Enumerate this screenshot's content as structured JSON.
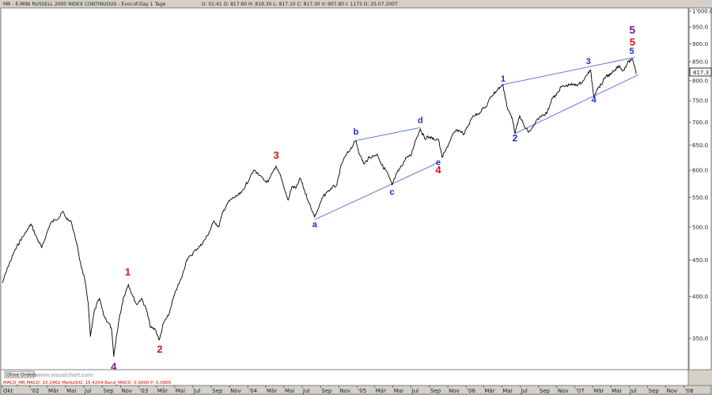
{
  "header": {
    "instrument": "MR - E-MINI RUSSELL 2000 INDEX CONTINUOUS - Evol-of-Day 1 Tage",
    "ohlc": "U: 01:41  O: 817.60  H: 819.30  L: 817.10  C: 817.30  V: 907.80  I: 1175  D: 25.07.2007"
  },
  "indicator_strip": {
    "text": "MACD_MR  MACD: 15.2462  MediaSIG: 15.4254  Band_MACD: 0.0000  P: 5.0905"
  },
  "buttons": {
    "ohne_orders": "Ohne Orders"
  },
  "watermark": "www.visualchart.com",
  "last_price": "817.3",
  "colors": {
    "plot_bg": "#ffffff",
    "frame_bg": "#d4d0c8",
    "price": "#000000",
    "trendline": "#4f6bd6",
    "wave_red": "#dd1111",
    "wave_blue": "#1a2fd0",
    "wave_purple": "#7a1d8a"
  },
  "chart_data": {
    "type": "line",
    "title": "",
    "xlabel": "",
    "ylabel": "",
    "y_scale": "log",
    "ylim": [
      318,
      1005
    ],
    "xlim": [
      "2001-10-01",
      "2008-01-10"
    ],
    "grid": false,
    "y_ticks": [
      {
        "value": 1000,
        "label": "1'000.0"
      },
      {
        "value": 950,
        "label": "950.0"
      },
      {
        "value": 900,
        "label": "900.0"
      },
      {
        "value": 850,
        "label": "850.0"
      },
      {
        "value": 800,
        "label": "800.0"
      },
      {
        "value": 750,
        "label": "750.0"
      },
      {
        "value": 700,
        "label": "700.0"
      },
      {
        "value": 650,
        "label": "650.0"
      },
      {
        "value": 600,
        "label": "600.0"
      },
      {
        "value": 550,
        "label": "550.0"
      },
      {
        "value": 500,
        "label": "500.0"
      },
      {
        "value": 450,
        "label": "450.0"
      },
      {
        "value": 400,
        "label": "400.0"
      },
      {
        "value": 350,
        "label": "350.0"
      }
    ],
    "x_ticks": [
      {
        "date": "2001-10-01",
        "label": "Okt"
      },
      {
        "date": "2002-01-01",
        "label": "'02"
      },
      {
        "date": "2002-03-01",
        "label": "Mär"
      },
      {
        "date": "2002-05-01",
        "label": "Mai"
      },
      {
        "date": "2002-07-01",
        "label": "Jul"
      },
      {
        "date": "2002-09-01",
        "label": "Sep"
      },
      {
        "date": "2002-11-01",
        "label": "Nov"
      },
      {
        "date": "2003-01-01",
        "label": "'03"
      },
      {
        "date": "2003-03-01",
        "label": "Mär"
      },
      {
        "date": "2003-05-01",
        "label": "Mai"
      },
      {
        "date": "2003-07-01",
        "label": "Jul"
      },
      {
        "date": "2003-09-01",
        "label": "Sep"
      },
      {
        "date": "2003-11-01",
        "label": "Nov"
      },
      {
        "date": "2004-01-01",
        "label": "'04"
      },
      {
        "date": "2004-03-01",
        "label": "Mär"
      },
      {
        "date": "2004-05-01",
        "label": "Mai"
      },
      {
        "date": "2004-07-01",
        "label": "Jul"
      },
      {
        "date": "2004-09-01",
        "label": "Sep"
      },
      {
        "date": "2004-11-01",
        "label": "Nov"
      },
      {
        "date": "2005-01-01",
        "label": "'05"
      },
      {
        "date": "2005-03-01",
        "label": "Mär"
      },
      {
        "date": "2005-05-01",
        "label": "Mai"
      },
      {
        "date": "2005-07-01",
        "label": "Jul"
      },
      {
        "date": "2005-09-01",
        "label": "Sep"
      },
      {
        "date": "2005-11-01",
        "label": "Nov"
      },
      {
        "date": "2006-01-01",
        "label": "'06"
      },
      {
        "date": "2006-03-01",
        "label": "Mär"
      },
      {
        "date": "2006-05-01",
        "label": "Mai"
      },
      {
        "date": "2006-07-01",
        "label": "Jul"
      },
      {
        "date": "2006-09-01",
        "label": "Sep"
      },
      {
        "date": "2006-11-01",
        "label": "Nov"
      },
      {
        "date": "2007-01-01",
        "label": "'07"
      },
      {
        "date": "2007-03-01",
        "label": "Mär"
      },
      {
        "date": "2007-05-01",
        "label": "Mai"
      },
      {
        "date": "2007-07-01",
        "label": "Jul"
      },
      {
        "date": "2007-09-01",
        "label": "Sep"
      },
      {
        "date": "2007-11-01",
        "label": "Nov"
      },
      {
        "date": "2008-01-01",
        "label": "'08"
      }
    ],
    "series": [
      {
        "points": [
          [
            "2001-10-01",
            418
          ],
          [
            "2001-10-20",
            440
          ],
          [
            "2001-11-10",
            462
          ],
          [
            "2001-12-01",
            480
          ],
          [
            "2001-12-20",
            492
          ],
          [
            "2002-01-05",
            505
          ],
          [
            "2002-01-25",
            482
          ],
          [
            "2002-02-10",
            468
          ],
          [
            "2002-02-25",
            488
          ],
          [
            "2002-03-10",
            505
          ],
          [
            "2002-03-25",
            512
          ],
          [
            "2002-04-10",
            516
          ],
          [
            "2002-04-22",
            526
          ],
          [
            "2002-05-05",
            512
          ],
          [
            "2002-05-20",
            508
          ],
          [
            "2002-06-05",
            478
          ],
          [
            "2002-06-20",
            445
          ],
          [
            "2002-07-05",
            420
          ],
          [
            "2002-07-15",
            393
          ],
          [
            "2002-07-23",
            352
          ],
          [
            "2002-08-05",
            382
          ],
          [
            "2002-08-22",
            398
          ],
          [
            "2002-09-05",
            377
          ],
          [
            "2002-09-20",
            368
          ],
          [
            "2002-10-01",
            362
          ],
          [
            "2002-10-09",
            330
          ],
          [
            "2002-10-25",
            368
          ],
          [
            "2002-11-10",
            398
          ],
          [
            "2002-11-27",
            416
          ],
          [
            "2002-12-10",
            402
          ],
          [
            "2002-12-25",
            390
          ],
          [
            "2003-01-10",
            398
          ],
          [
            "2003-01-25",
            385
          ],
          [
            "2003-02-10",
            362
          ],
          [
            "2003-02-25",
            360
          ],
          [
            "2003-03-11",
            348
          ],
          [
            "2003-03-25",
            368
          ],
          [
            "2003-04-10",
            376
          ],
          [
            "2003-04-25",
            396
          ],
          [
            "2003-05-10",
            412
          ],
          [
            "2003-05-25",
            425
          ],
          [
            "2003-06-10",
            450
          ],
          [
            "2003-06-25",
            456
          ],
          [
            "2003-07-10",
            465
          ],
          [
            "2003-07-25",
            470
          ],
          [
            "2003-08-10",
            480
          ],
          [
            "2003-08-25",
            492
          ],
          [
            "2003-09-10",
            510
          ],
          [
            "2003-09-25",
            500
          ],
          [
            "2003-10-10",
            525
          ],
          [
            "2003-10-25",
            540
          ],
          [
            "2003-11-10",
            548
          ],
          [
            "2003-11-25",
            552
          ],
          [
            "2003-12-10",
            558
          ],
          [
            "2003-12-25",
            572
          ],
          [
            "2004-01-10",
            588
          ],
          [
            "2004-01-23",
            600
          ],
          [
            "2004-02-10",
            590
          ],
          [
            "2004-02-25",
            580
          ],
          [
            "2004-03-10",
            578
          ],
          [
            "2004-03-25",
            597
          ],
          [
            "2004-04-05",
            608
          ],
          [
            "2004-04-20",
            590
          ],
          [
            "2004-05-05",
            560
          ],
          [
            "2004-05-15",
            545
          ],
          [
            "2004-05-28",
            570
          ],
          [
            "2004-06-10",
            566
          ],
          [
            "2004-06-25",
            585
          ],
          [
            "2004-07-10",
            560
          ],
          [
            "2004-07-25",
            540
          ],
          [
            "2004-08-05",
            525
          ],
          [
            "2004-08-12",
            516
          ],
          [
            "2004-08-25",
            532
          ],
          [
            "2004-09-10",
            552
          ],
          [
            "2004-09-25",
            560
          ],
          [
            "2004-10-10",
            568
          ],
          [
            "2004-10-25",
            572
          ],
          [
            "2004-11-10",
            612
          ],
          [
            "2004-11-25",
            630
          ],
          [
            "2004-12-10",
            642
          ],
          [
            "2004-12-28",
            660
          ],
          [
            "2005-01-10",
            630
          ],
          [
            "2005-01-25",
            612
          ],
          [
            "2005-02-10",
            625
          ],
          [
            "2005-02-25",
            628
          ],
          [
            "2005-03-10",
            632
          ],
          [
            "2005-03-25",
            610
          ],
          [
            "2005-04-10",
            598
          ],
          [
            "2005-04-28",
            572
          ],
          [
            "2005-05-15",
            595
          ],
          [
            "2005-05-30",
            608
          ],
          [
            "2005-06-15",
            625
          ],
          [
            "2005-06-30",
            628
          ],
          [
            "2005-07-15",
            660
          ],
          [
            "2005-08-01",
            685
          ],
          [
            "2005-08-15",
            665
          ],
          [
            "2005-08-30",
            668
          ],
          [
            "2005-09-15",
            663
          ],
          [
            "2005-09-30",
            663
          ],
          [
            "2005-10-13",
            625
          ],
          [
            "2005-10-25",
            640
          ],
          [
            "2005-11-10",
            662
          ],
          [
            "2005-11-25",
            680
          ],
          [
            "2005-12-10",
            682
          ],
          [
            "2005-12-25",
            674
          ],
          [
            "2006-01-10",
            695
          ],
          [
            "2006-01-25",
            715
          ],
          [
            "2006-02-10",
            718
          ],
          [
            "2006-02-25",
            730
          ],
          [
            "2006-03-10",
            735
          ],
          [
            "2006-03-25",
            760
          ],
          [
            "2006-04-10",
            772
          ],
          [
            "2006-04-25",
            784
          ],
          [
            "2006-05-05",
            788
          ],
          [
            "2006-05-20",
            730
          ],
          [
            "2006-06-05",
            710
          ],
          [
            "2006-06-14",
            675
          ],
          [
            "2006-06-30",
            715
          ],
          [
            "2006-07-15",
            690
          ],
          [
            "2006-07-30",
            678
          ],
          [
            "2006-08-15",
            690
          ],
          [
            "2006-08-30",
            708
          ],
          [
            "2006-09-15",
            716
          ],
          [
            "2006-09-30",
            722
          ],
          [
            "2006-10-15",
            755
          ],
          [
            "2006-10-30",
            763
          ],
          [
            "2006-11-15",
            784
          ],
          [
            "2006-11-30",
            786
          ],
          [
            "2006-12-15",
            790
          ],
          [
            "2006-12-30",
            788
          ],
          [
            "2007-01-15",
            792
          ],
          [
            "2007-01-30",
            800
          ],
          [
            "2007-02-10",
            815
          ],
          [
            "2007-02-22",
            828
          ],
          [
            "2007-03-05",
            760
          ],
          [
            "2007-03-15",
            778
          ],
          [
            "2007-03-30",
            790
          ],
          [
            "2007-04-15",
            812
          ],
          [
            "2007-04-30",
            815
          ],
          [
            "2007-05-15",
            828
          ],
          [
            "2007-05-30",
            840
          ],
          [
            "2007-06-10",
            825
          ],
          [
            "2007-06-25",
            845
          ],
          [
            "2007-07-10",
            858
          ],
          [
            "2007-07-20",
            838
          ],
          [
            "2007-07-25",
            817
          ]
        ]
      }
    ],
    "trendlines": [
      {
        "from": [
          "2004-08-12",
          512
        ],
        "to": [
          "2005-09-30",
          615
        ]
      },
      {
        "from": [
          "2004-12-28",
          660
        ],
        "to": [
          "2005-08-01",
          688
        ]
      },
      {
        "from": [
          "2006-05-05",
          790
        ],
        "to": [
          "2007-07-20",
          862
        ]
      },
      {
        "from": [
          "2006-06-14",
          675
        ],
        "to": [
          "2007-08-01",
          815
        ]
      }
    ],
    "annotations": [
      {
        "text": "1",
        "color": "red",
        "size": 13,
        "at": [
          "2002-11-25",
          428
        ]
      },
      {
        "text": "2",
        "color": "red",
        "size": 13,
        "at": [
          "2003-03-12",
          334
        ]
      },
      {
        "text": "3",
        "color": "red",
        "size": 13,
        "at": [
          "2004-04-05",
          623
        ]
      },
      {
        "text": "4",
        "color": "red",
        "size": 13,
        "at": [
          "2005-09-30",
          594
        ]
      },
      {
        "text": "4",
        "color": "purple",
        "size": 13,
        "at": [
          "2002-10-09",
          316
        ]
      },
      {
        "text": "a",
        "color": "blue",
        "size": 11,
        "at": [
          "2004-08-12",
          500
        ]
      },
      {
        "text": "b",
        "color": "blue",
        "size": 11,
        "at": [
          "2004-12-28",
          673
        ]
      },
      {
        "text": "c",
        "color": "blue",
        "size": 11,
        "at": [
          "2005-04-28",
          555
        ]
      },
      {
        "text": "d",
        "color": "blue",
        "size": 11,
        "at": [
          "2005-08-01",
          698
        ]
      },
      {
        "text": "e",
        "color": "blue",
        "size": 11,
        "at": [
          "2005-09-30",
          610
        ]
      },
      {
        "text": "1",
        "color": "blue",
        "size": 11,
        "at": [
          "2006-05-05",
          798
        ]
      },
      {
        "text": "2",
        "color": "blue",
        "size": 12,
        "at": [
          "2006-06-14",
          658
        ]
      },
      {
        "text": "3",
        "color": "blue",
        "size": 11,
        "at": [
          "2007-02-15",
          843
        ]
      },
      {
        "text": "4",
        "color": "blue",
        "size": 11,
        "at": [
          "2007-03-05",
          746
        ]
      },
      {
        "text": "5",
        "color": "blue",
        "size": 11,
        "at": [
          "2007-07-10",
          872
        ]
      },
      {
        "text": "5",
        "color": "red",
        "size": 13,
        "at": [
          "2007-07-12",
          895
        ]
      },
      {
        "text": "5",
        "color": "purple",
        "size": 14,
        "at": [
          "2007-07-12",
          930
        ]
      }
    ]
  }
}
